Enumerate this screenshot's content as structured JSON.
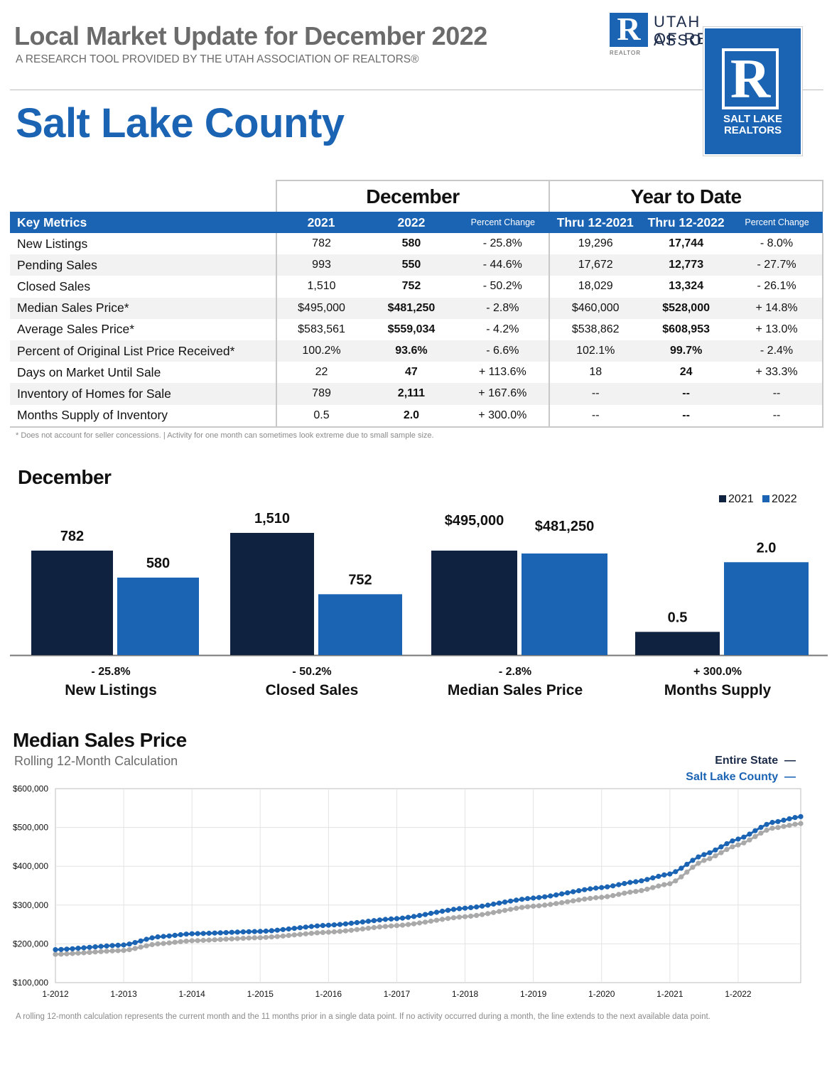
{
  "header": {
    "title": "Local Market Update for December 2022",
    "subtitle": "A RESEARCH TOOL PROVIDED BY THE UTAH ASSOCIATION OF REALTORS®",
    "area": "Salt Lake County"
  },
  "logos": {
    "uar": {
      "mark": "R",
      "mark_caption": "REALTOR",
      "line1": "UTAH ASSOCIATION",
      "line2": "OF REALTORS"
    },
    "slr": {
      "mark": "R",
      "line1": "SALT LAKE",
      "line2": "REALTORS"
    }
  },
  "table": {
    "group_headers": {
      "december": "December",
      "ytd": "Year to Date"
    },
    "columns": {
      "metric": "Key Metrics",
      "dec_2021": "2021",
      "dec_2022": "2022",
      "dec_change": "Percent Change",
      "ytd_2021": "Thru 12-2021",
      "ytd_2022": "Thru 12-2022",
      "ytd_change": "Percent Change"
    },
    "rows": [
      [
        "New Listings",
        "782",
        "580",
        "- 25.8%",
        "19,296",
        "17,744",
        "- 8.0%"
      ],
      [
        "Pending Sales",
        "993",
        "550",
        "- 44.6%",
        "17,672",
        "12,773",
        "- 27.7%"
      ],
      [
        "Closed Sales",
        "1,510",
        "752",
        "- 50.2%",
        "18,029",
        "13,324",
        "- 26.1%"
      ],
      [
        "Median Sales Price*",
        "$495,000",
        "$481,250",
        "- 2.8%",
        "$460,000",
        "$528,000",
        "+ 14.8%"
      ],
      [
        "Average Sales Price*",
        "$583,561",
        "$559,034",
        "- 4.2%",
        "$538,862",
        "$608,953",
        "+ 13.0%"
      ],
      [
        "Percent of Original List Price Received*",
        "100.2%",
        "93.6%",
        "- 6.6%",
        "102.1%",
        "99.7%",
        "- 2.4%"
      ],
      [
        "Days on Market Until Sale",
        "22",
        "47",
        "+ 113.6%",
        "18",
        "24",
        "+ 33.3%"
      ],
      [
        "Inventory of Homes for Sale",
        "789",
        "2,111",
        "+ 167.6%",
        "--",
        "--",
        "--"
      ],
      [
        "Months Supply of Inventory",
        "0.5",
        "2.0",
        "+ 300.0%",
        "--",
        "--",
        "--"
      ]
    ],
    "footnote": "* Does not account for seller concessions.  |  Activity for one month can sometimes look extreme due to small sample size."
  },
  "bar_section": {
    "title": "December"
  },
  "line_section": {
    "title": "Median Sales Price",
    "subtitle": "Rolling 12-Month Calculation",
    "legend_state": "Entire State",
    "legend_slc": "Salt Lake County",
    "dash": "—",
    "footnote": "A rolling 12-month calculation represents the current month and the 11 months prior in a single data point. If no activity occurred during a month, the line extends to the next available data point."
  },
  "colors": {
    "brand_blue": "#1b64b4",
    "navy": "#0f2240",
    "grey_line": "#a9a9a9"
  },
  "chart_data": [
    {
      "type": "bar",
      "title": "December",
      "legend": [
        "2021",
        "2022"
      ],
      "legend_placement": "top-right",
      "groups": [
        {
          "label": "New Listings",
          "change": "- 25.8%",
          "values": [
            782,
            580
          ],
          "labels": [
            "782",
            "580"
          ]
        },
        {
          "label": "Closed Sales",
          "change": "- 50.2%",
          "values": [
            1510,
            752
          ],
          "labels": [
            "1,510",
            "752"
          ]
        },
        {
          "label": "Median Sales Price",
          "change": "- 2.8%",
          "values": [
            495000,
            481250
          ],
          "labels": [
            "$495,000",
            "$481,250"
          ]
        },
        {
          "label": "Months Supply",
          "change": "+ 300.0%",
          "values": [
            0.5,
            2.0
          ],
          "labels": [
            "0.5",
            "2.0"
          ]
        }
      ]
    },
    {
      "type": "line",
      "title": "Median Sales Price",
      "subtitle": "Rolling 12-Month Calculation",
      "x_ticks": [
        "1-2012",
        "1-2013",
        "1-2014",
        "1-2015",
        "1-2016",
        "1-2017",
        "1-2018",
        "1-2019",
        "1-2020",
        "1-2021",
        "1-2022"
      ],
      "y_ticks": [
        "$100,000",
        "$200,000",
        "$300,000",
        "$400,000",
        "$500,000",
        "$600,000"
      ],
      "ylim": [
        100000,
        600000
      ],
      "x_start": "1-2012",
      "x_end": "12-2022",
      "grid": true,
      "legend_placement": "top-right",
      "series": [
        {
          "name": "Salt Lake County",
          "color": "#1b64b4",
          "anchors": [
            [
              "1-2012",
              185000
            ],
            [
              "1-2013",
              197000
            ],
            [
              "7-2013",
              218000
            ],
            [
              "1-2014",
              226000
            ],
            [
              "1-2015",
              232000
            ],
            [
              "1-2016",
              248000
            ],
            [
              "1-2017",
              265000
            ],
            [
              "1-2018",
              292000
            ],
            [
              "1-2019",
              318000
            ],
            [
              "1-2020",
              345000
            ],
            [
              "7-2020",
              360000
            ],
            [
              "1-2021",
              380000
            ],
            [
              "7-2021",
              430000
            ],
            [
              "1-2022",
              470000
            ],
            [
              "7-2022",
              513000
            ],
            [
              "12-2022",
              528000
            ]
          ]
        },
        {
          "name": "Entire State",
          "color": "#a9a9a9",
          "anchors": [
            [
              "1-2012",
              173000
            ],
            [
              "1-2013",
              183000
            ],
            [
              "7-2013",
              200000
            ],
            [
              "1-2014",
              208000
            ],
            [
              "1-2015",
              216000
            ],
            [
              "1-2016",
              230000
            ],
            [
              "1-2017",
              247000
            ],
            [
              "1-2018",
              270000
            ],
            [
              "1-2019",
              297000
            ],
            [
              "1-2020",
              320000
            ],
            [
              "7-2020",
              335000
            ],
            [
              "1-2021",
              355000
            ],
            [
              "7-2021",
              415000
            ],
            [
              "1-2022",
              455000
            ],
            [
              "7-2022",
              498000
            ],
            [
              "12-2022",
              510000
            ]
          ]
        }
      ]
    }
  ]
}
